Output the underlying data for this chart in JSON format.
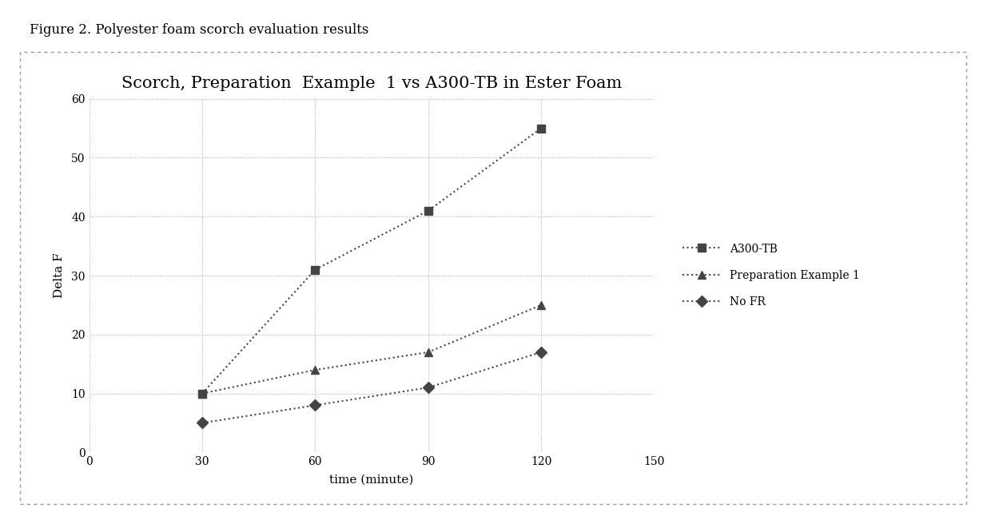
{
  "figure_label": "Figure 2. Polyester foam scorch evaluation results",
  "title": "Scorch, Preparation  Example  1 vs A300-TB in Ester Foam",
  "xlabel": "time (minute)",
  "ylabel": "Delta F",
  "xlim": [
    0,
    150
  ],
  "ylim": [
    0,
    60
  ],
  "xticks": [
    0,
    30,
    60,
    90,
    120,
    150
  ],
  "yticks": [
    0,
    10,
    20,
    30,
    40,
    50,
    60
  ],
  "series": [
    {
      "label": "A300-TB",
      "x": [
        30,
        60,
        90,
        120
      ],
      "y": [
        10,
        31,
        41,
        55
      ],
      "color": "#444444",
      "marker": "s",
      "linestyle": ":"
    },
    {
      "label": "Preparation Example 1",
      "x": [
        30,
        60,
        90,
        120
      ],
      "y": [
        10,
        14,
        17,
        25
      ],
      "color": "#444444",
      "marker": "^",
      "linestyle": ":"
    },
    {
      "label": "No FR",
      "x": [
        30,
        60,
        90,
        120
      ],
      "y": [
        5,
        8,
        11,
        17
      ],
      "color": "#444444",
      "marker": "D",
      "linestyle": ":"
    }
  ],
  "outer_box_color": "#888888",
  "background_color": "#ffffff",
  "title_fontsize": 15,
  "label_fontsize": 11,
  "tick_fontsize": 10,
  "legend_fontsize": 10,
  "figure_label_fontsize": 12
}
